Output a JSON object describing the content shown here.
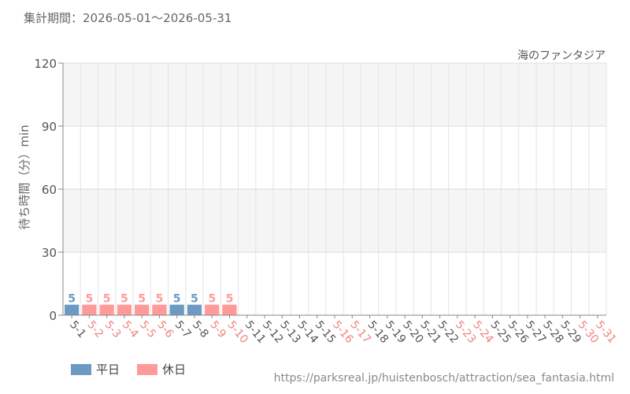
{
  "header": {
    "period_label": "集計期間：2026-05-01～2026-05-31"
  },
  "footer": {
    "source_url": "https://parksreal.jp/huistenbosch/attraction/sea_fantasia.html"
  },
  "colors": {
    "weekday": "#6c9ac2",
    "holiday": "#ff9a9a",
    "axis_text": "#555555",
    "holiday_text": "#f08080"
  },
  "chart_data": {
    "type": "bar",
    "title": "海のファンタジア",
    "ylabel": "待ち時間（分）min",
    "xlabel": "",
    "ylim": [
      0,
      120
    ],
    "yticks": [
      0,
      30,
      60,
      90,
      120
    ],
    "grid": true,
    "legend": [
      {
        "key": "weekday",
        "label": "平日"
      },
      {
        "key": "holiday",
        "label": "休日"
      }
    ],
    "categories": [
      "5-1",
      "5-2",
      "5-3",
      "5-4",
      "5-5",
      "5-6",
      "5-7",
      "5-8",
      "5-9",
      "5-10",
      "5-11",
      "5-12",
      "5-13",
      "5-14",
      "5-15",
      "5-16",
      "5-17",
      "5-18",
      "5-19",
      "5-20",
      "5-21",
      "5-22",
      "5-23",
      "5-24",
      "5-25",
      "5-26",
      "5-27",
      "5-28",
      "5-29",
      "5-30",
      "5-31"
    ],
    "day_type": [
      "weekday",
      "holiday",
      "holiday",
      "holiday",
      "holiday",
      "holiday",
      "weekday",
      "weekday",
      "holiday",
      "holiday",
      "weekday",
      "weekday",
      "weekday",
      "weekday",
      "weekday",
      "holiday",
      "holiday",
      "weekday",
      "weekday",
      "weekday",
      "weekday",
      "weekday",
      "holiday",
      "holiday",
      "weekday",
      "weekday",
      "weekday",
      "weekday",
      "weekday",
      "holiday",
      "holiday"
    ],
    "values": [
      5,
      5,
      5,
      5,
      5,
      5,
      5,
      5,
      5,
      5,
      null,
      null,
      null,
      null,
      null,
      null,
      null,
      null,
      null,
      null,
      null,
      null,
      null,
      null,
      null,
      null,
      null,
      null,
      null,
      null,
      null
    ]
  }
}
